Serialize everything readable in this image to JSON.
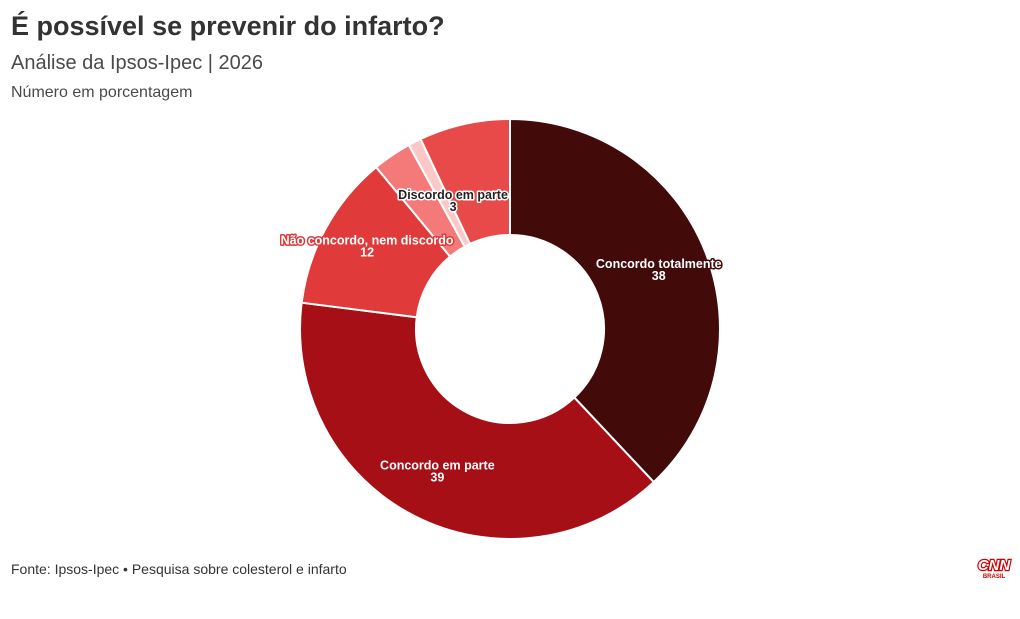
{
  "header": {
    "title": "É possível se prevenir do infarto?",
    "subtitle": "Análise da Ipsos-Ipec | 2026",
    "unit_note": "Número em porcentagem"
  },
  "chart_data": {
    "type": "pie",
    "variant": "donut",
    "title": "É possível se prevenir do infarto?",
    "subtitle": "Análise da Ipsos-Ipec | 2026",
    "unit": "Número em porcentagem",
    "series": [
      {
        "label": "Concordo totalmente",
        "value": 38,
        "color": "#430a0a"
      },
      {
        "label": "Concordo em parte",
        "value": 39,
        "color": "#a50f15"
      },
      {
        "label": "Não concordo, nem discordo",
        "value": 12,
        "color": "#e03a3a"
      },
      {
        "label": "Discordo em parte",
        "value": 3,
        "color": "#f47a79"
      },
      {
        "label": "",
        "value": 1,
        "color": "#fbc7c7"
      },
      {
        "label": "",
        "value": 7,
        "color": "#e84a4a"
      }
    ]
  },
  "footer": {
    "source": "Fonte: Ipsos-Ipec • Pesquisa sobre colesterol e infarto"
  },
  "logo": {
    "word": "CNN",
    "sub": "BRASIL",
    "color": "#cc0000"
  }
}
